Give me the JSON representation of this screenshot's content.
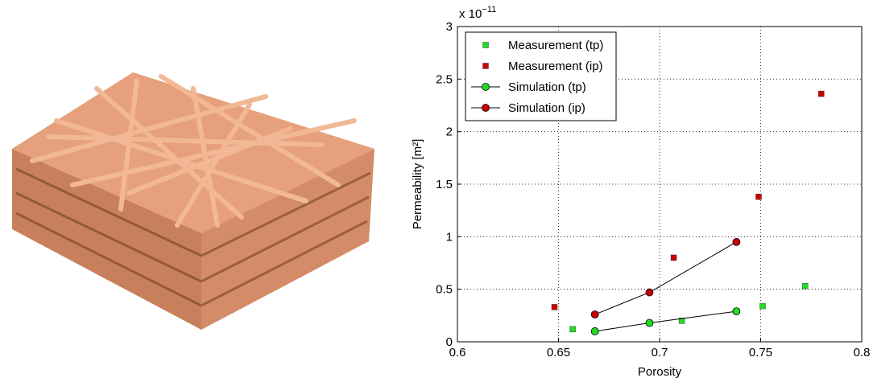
{
  "chart_data": {
    "type": "scatter",
    "xlabel": "Porosity",
    "ylabel": "Permeability [m²]",
    "y_multiplier": {
      "base": "x 10",
      "exponent": "−11"
    },
    "xlim": [
      0.6,
      0.8
    ],
    "xticks": [
      0.6,
      0.65,
      0.7,
      0.75,
      0.8
    ],
    "ylim": [
      0,
      3
    ],
    "yticks": [
      0,
      0.5,
      1,
      1.5,
      2,
      2.5,
      3
    ],
    "grid": true,
    "legend": "upper-left",
    "series": [
      {
        "name": "Measurement (tp)",
        "color": "#22dd22",
        "marker": "square",
        "line": false,
        "x": [
          0.657,
          0.711,
          0.751,
          0.772
        ],
        "values": [
          0.12,
          0.2,
          0.34,
          0.53
        ]
      },
      {
        "name": "Measurement (ip)",
        "color": "#cc0000",
        "marker": "square",
        "line": false,
        "x": [
          0.648,
          0.707,
          0.749,
          0.78
        ],
        "values": [
          0.33,
          0.8,
          1.38,
          2.36
        ]
      },
      {
        "name": "Simulation (tp)",
        "color": "#22dd22",
        "marker": "circle",
        "line": true,
        "x": [
          0.668,
          0.695,
          0.738
        ],
        "values": [
          0.1,
          0.18,
          0.29
        ]
      },
      {
        "name": "Simulation (ip)",
        "color": "#cc0000",
        "marker": "circle",
        "line": true,
        "x": [
          0.668,
          0.695,
          0.738
        ],
        "values": [
          0.26,
          0.47,
          0.95
        ]
      }
    ]
  }
}
